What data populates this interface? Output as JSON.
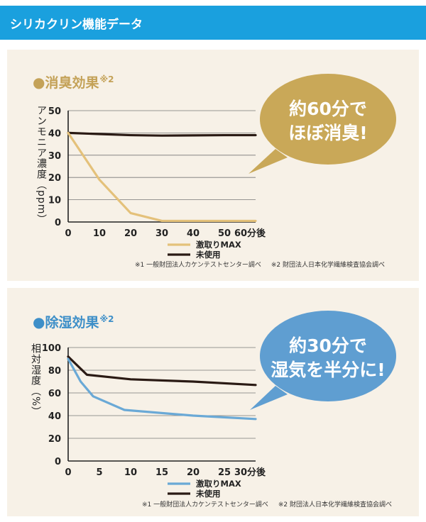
{
  "header": {
    "title": "シリカクリン機能データ"
  },
  "panels": [
    {
      "title": "消臭効果",
      "title_note": "※2",
      "bullet": "●",
      "ylabel": "アンモニア濃度（ppm）",
      "bubble": {
        "line1": "約60分で",
        "line2": "ほぼ消臭!"
      },
      "footnotes": [
        "※1 一般財団法人カケンテストセンター調べ",
        "※2 財団法人日本化学繊維検査協会調べ"
      ]
    },
    {
      "title": "除湿効果",
      "title_note": "※2",
      "bullet": "●",
      "ylabel": "相対湿度（%）",
      "bubble": {
        "line1": "約30分で",
        "line2": "湿気を半分に!"
      },
      "footnotes": [
        "※1 一般財団法人カケンテストセンター調べ",
        "※2 財団法人日本化学繊維検査協会調べ"
      ]
    }
  ],
  "colors": {
    "header_bg": "#1aa0de",
    "panel_bg": "#f7f1e7",
    "bubble1": "#c9a858",
    "bubble2": "#5f9ed1",
    "series_used": "#e4c17a",
    "series_used2": "#6aa9d6",
    "series_unused": "#2a1a14"
  },
  "chart_data": [
    {
      "type": "line",
      "title": "消臭効果",
      "ylabel": "アンモニア濃度（ppm）",
      "xlabel": "",
      "x_tick_labels": [
        "0",
        "10",
        "20",
        "30",
        "40",
        "50",
        "60分後"
      ],
      "y_tick_labels": [
        "0",
        "10",
        "20",
        "30",
        "40",
        "50"
      ],
      "xlim": [
        0,
        60
      ],
      "ylim": [
        0,
        50
      ],
      "grid": true,
      "legend_position": "bottom-center",
      "series": [
        {
          "name": "激取りMAX",
          "color": "#e4c17a",
          "x": [
            0,
            10,
            20,
            30,
            40,
            50,
            60
          ],
          "y": [
            40,
            19,
            4,
            0.5,
            0.5,
            0.5,
            0.5
          ]
        },
        {
          "name": "未使用",
          "color": "#2a1a14",
          "x": [
            0,
            10,
            20,
            30,
            40,
            50,
            60
          ],
          "y": [
            40,
            39.5,
            39,
            38.8,
            38.9,
            39,
            39
          ]
        }
      ]
    },
    {
      "type": "line",
      "title": "除湿効果",
      "ylabel": "相対湿度（%）",
      "xlabel": "",
      "x_tick_labels": [
        "0",
        "5",
        "10",
        "15",
        "20",
        "25",
        "30分後"
      ],
      "y_tick_labels": [
        "0",
        "20",
        "40",
        "60",
        "80",
        "100"
      ],
      "xlim": [
        0,
        30
      ],
      "ylim": [
        0,
        100
      ],
      "grid": true,
      "legend_position": "bottom-center",
      "series": [
        {
          "name": "激取りMAX",
          "color": "#6aa9d6",
          "x": [
            0,
            2,
            4,
            9,
            20,
            30
          ],
          "y": [
            90,
            70,
            57,
            45,
            40,
            37
          ]
        },
        {
          "name": "未使用",
          "color": "#2a1a14",
          "x": [
            0,
            3,
            10,
            20,
            30
          ],
          "y": [
            92,
            76,
            72,
            70,
            67
          ]
        }
      ]
    }
  ]
}
